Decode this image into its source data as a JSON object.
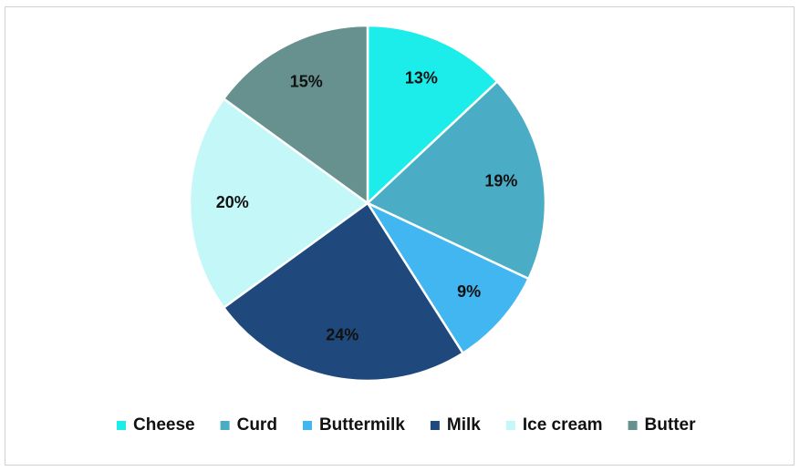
{
  "chart_data": {
    "type": "pie",
    "categories": [
      "Cheese",
      "Curd",
      "Buttermilk",
      "Milk",
      "Ice cream",
      "Butter"
    ],
    "values": [
      13,
      19,
      9,
      24,
      20,
      15
    ],
    "value_labels": [
      "13%",
      "19%",
      "9%",
      "24%",
      "20%",
      "15%"
    ],
    "colors": [
      "#1cecea",
      "#4bacc6",
      "#41b6f0",
      "#1f497d",
      "#c4f7f7",
      "#66918f"
    ],
    "legend": "bottom"
  }
}
